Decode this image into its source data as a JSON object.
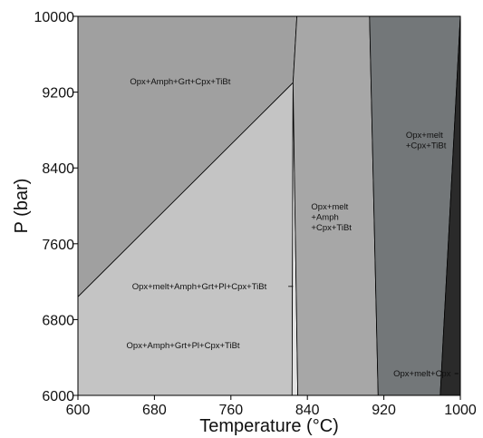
{
  "chart_data": {
    "type": "phase-diagram",
    "xlabel": "Temperature (°C)",
    "ylabel": "P (bar)",
    "xlim": [
      600,
      1000
    ],
    "ylim": [
      6000,
      10000
    ],
    "x_ticks": [
      600,
      680,
      760,
      840,
      920,
      1000
    ],
    "y_ticks": [
      6000,
      6800,
      7600,
      8400,
      9200,
      10000
    ],
    "x_tick_labels": [
      "600",
      "680",
      "760",
      "840",
      "920",
      "1000"
    ],
    "y_tick_labels": [
      "6000",
      "6800",
      "7600",
      "8400",
      "9200",
      "10000"
    ],
    "fields": [
      {
        "label": "Opx+Amph+Grt+Cpx+TiBt",
        "color": "#a0a0a0",
        "polygon": [
          [
            600,
            7040
          ],
          [
            825,
            9300
          ],
          [
            829,
            10000
          ],
          [
            600,
            10000
          ]
        ],
        "label_lines": [
          "Opx+Amph+Grt+Cpx+TiBt"
        ],
        "label_pos": [
          707,
          9280
        ]
      },
      {
        "label": "Opx+Amph+Grt+Pl+Cpx+TiBt",
        "color": "#c4c4c4",
        "polygon": [
          [
            600,
            6000
          ],
          [
            824,
            6000
          ],
          [
            825,
            9300
          ],
          [
            600,
            7040
          ]
        ],
        "label_lines": [
          "Opx+Amph+Grt+Pl+Cpx+TiBt"
        ],
        "label_pos": [
          710,
          6500
        ]
      },
      {
        "label": "Opx+melt+Amph+Grt+Pl+Cpx+TiBt",
        "color": "#e2e2e2",
        "polygon": [
          [
            824,
            6000
          ],
          [
            830,
            6000
          ],
          [
            825,
            9300
          ]
        ],
        "label_lines": [
          "Opx+melt+Amph+Grt+Pl+Cpx+TiBt"
        ],
        "label_pos": [
          727,
          7120
        ]
      },
      {
        "label": "Opx+melt+Amph+Cpx+TiBt",
        "color": "#a7a7a7",
        "polygon": [
          [
            830,
            6000
          ],
          [
            914,
            6000
          ],
          [
            905,
            10000
          ],
          [
            829,
            10000
          ],
          [
            825,
            9300
          ]
        ],
        "label_lines": [
          "Opx+melt",
          "+Amph",
          "+Cpx+TiBt"
        ],
        "label_pos": [
          844,
          7960
        ]
      },
      {
        "label": "Opx+melt+Cpx+TiBt",
        "color": "#737779",
        "polygon": [
          [
            914,
            6000
          ],
          [
            979,
            6000
          ],
          [
            1000,
            10000
          ],
          [
            905,
            10000
          ]
        ],
        "label_lines": [
          "Opx+melt",
          "+Cpx+TiBt"
        ],
        "label_pos": [
          943,
          8720
        ]
      },
      {
        "label": "Opx+melt+Cpx",
        "color": "#2a2a2a",
        "polygon": [
          [
            979,
            6000
          ],
          [
            1000,
            6000
          ],
          [
            1000,
            10000
          ]
        ],
        "label_lines": [
          "Opx+melt+Cpx"
        ],
        "label_pos": [
          960,
          6200
        ]
      }
    ],
    "grid": false,
    "legend": "none"
  }
}
